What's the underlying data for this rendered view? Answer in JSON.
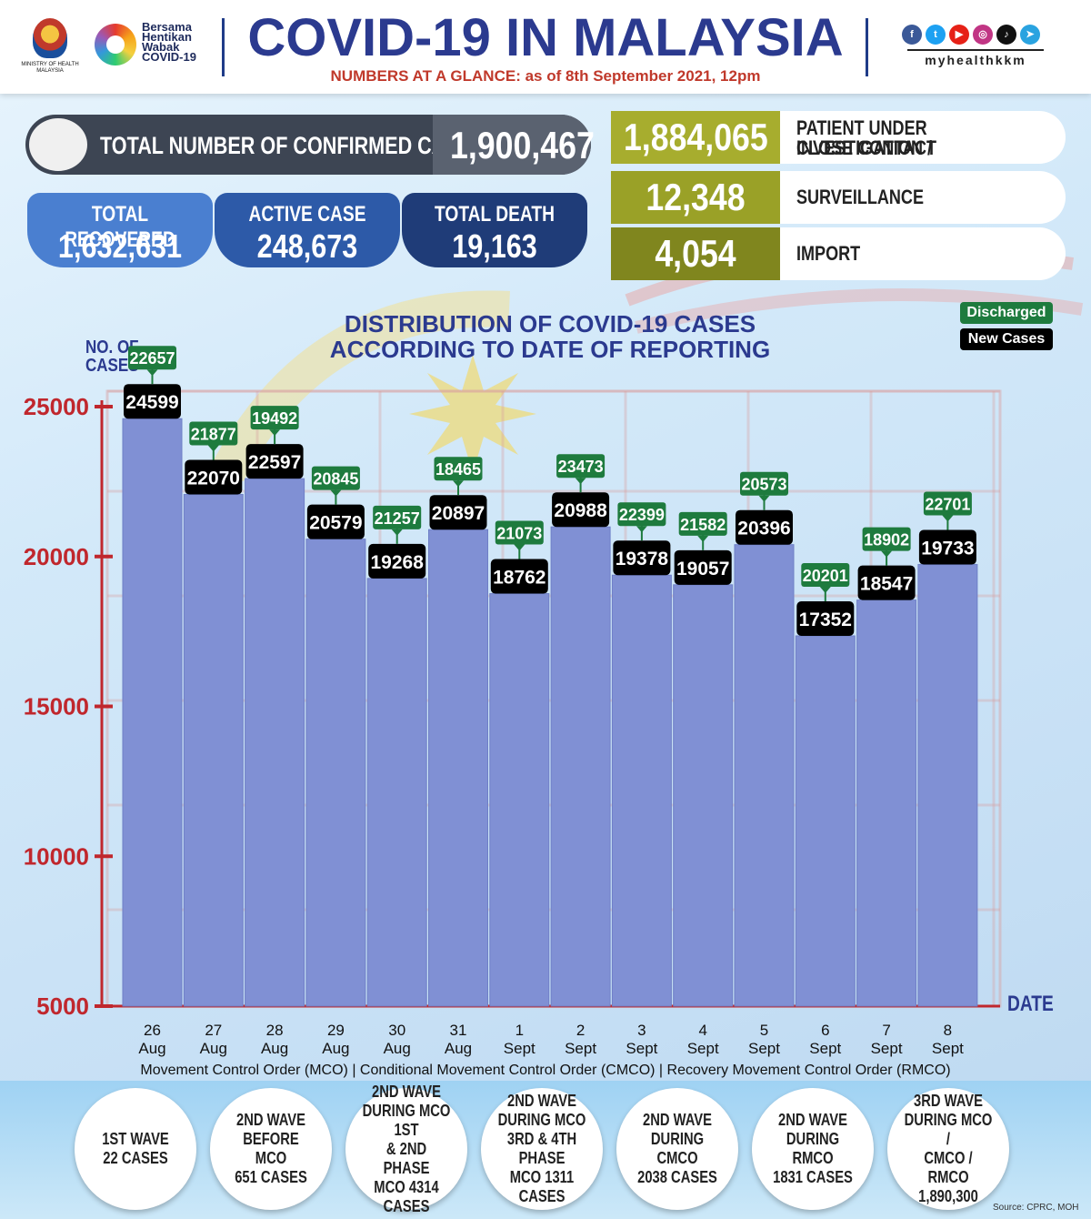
{
  "header": {
    "crest_text": "MINISTRY OF HEALTH MALAYSIA",
    "campaign_text": [
      "Bersama",
      "Hentikan",
      "Wabak",
      "COVID-19"
    ],
    "title": "COVID-19 IN MALAYSIA",
    "subtitle": "NUMBERS AT A GLANCE: as of 8th September 2021, 12pm",
    "social_icons": [
      "facebook-icon",
      "twitter-icon",
      "youtube-icon",
      "instagram-icon",
      "tiktok-icon",
      "telegram-icon"
    ],
    "handle": "myhealthkkm"
  },
  "confirmed": {
    "label": "TOTAL NUMBER OF CONFIRMED CASES",
    "value": "1,900,467"
  },
  "stats": {
    "recovered": {
      "label": "TOTAL RECOVERED",
      "value": "1,632,631"
    },
    "active": {
      "label": "ACTIVE CASE",
      "value": "248,673"
    },
    "death": {
      "label": "TOTAL DEATH",
      "value": "19,163"
    }
  },
  "sources": {
    "pui": {
      "value": "1,884,065",
      "label1": "PATIENT UNDER INVESTIGATION /",
      "label2": "CLOSE CONTACT"
    },
    "surveillance": {
      "value": "12,348",
      "label": "SURVEILLANCE"
    },
    "import": {
      "value": "4,054",
      "label": "IMPORT"
    }
  },
  "colors": {
    "navy": "#2b3a8f",
    "bar": "#8090d4",
    "discharged": "#1e7b3e",
    "newcases": "#000000",
    "pui": "#a7ad2e",
    "surveillance": "#9aa127",
    "import": "#80861e",
    "axis_red": "#c0272d"
  },
  "chart_data": {
    "type": "bar",
    "title_line1": "DISTRIBUTION OF COVID-19 CASES",
    "title_line2": "ACCORDING TO DATE OF REPORTING",
    "ylabel_line1": "NO. OF",
    "ylabel_line2": "CASES",
    "xlabel": "DATE",
    "legend": [
      "Discharged",
      "New Cases"
    ],
    "yticks": [
      25000,
      20000,
      15000,
      10000,
      5000
    ],
    "ylim": [
      5000,
      25000
    ],
    "categories": [
      [
        "26",
        "Aug"
      ],
      [
        "27",
        "Aug"
      ],
      [
        "28",
        "Aug"
      ],
      [
        "29",
        "Aug"
      ],
      [
        "30",
        "Aug"
      ],
      [
        "31",
        "Aug"
      ],
      [
        "1",
        "Sept"
      ],
      [
        "2",
        "Sept"
      ],
      [
        "3",
        "Sept"
      ],
      [
        "4",
        "Sept"
      ],
      [
        "5",
        "Sept"
      ],
      [
        "6",
        "Sept"
      ],
      [
        "7",
        "Sept"
      ],
      [
        "8",
        "Sept"
      ]
    ],
    "series": [
      {
        "name": "New Cases",
        "values": [
          24599,
          22070,
          22597,
          20579,
          19268,
          20897,
          18762,
          20988,
          19378,
          19057,
          20396,
          17352,
          18547,
          19733
        ]
      },
      {
        "name": "Discharged",
        "values": [
          22657,
          21877,
          19492,
          20845,
          21257,
          18465,
          21073,
          23473,
          22399,
          21582,
          20573,
          20201,
          18902,
          22701
        ]
      }
    ]
  },
  "mco_caption": "Movement Control Order (MCO) | Conditional Movement Control Order (CMCO) | Recovery Movement Control Order (RMCO)",
  "waves": [
    "1ST WAVE\n22 CASES",
    "2ND WAVE\nBEFORE MCO\n651 CASES",
    "2ND WAVE\nDURING MCO 1ST\n& 2ND PHASE\nMCO 4314\nCASES",
    "2ND WAVE\nDURING MCO\n3RD & 4TH PHASE\nMCO 1311\nCASES",
    "2ND WAVE\nDURING CMCO\n2038 CASES",
    "2ND WAVE\nDURING RMCO\n1831 CASES",
    "3RD WAVE\nDURING MCO /\nCMCO / RMCO\n1,890,300"
  ],
  "source": "Source: CPRC, MOH"
}
